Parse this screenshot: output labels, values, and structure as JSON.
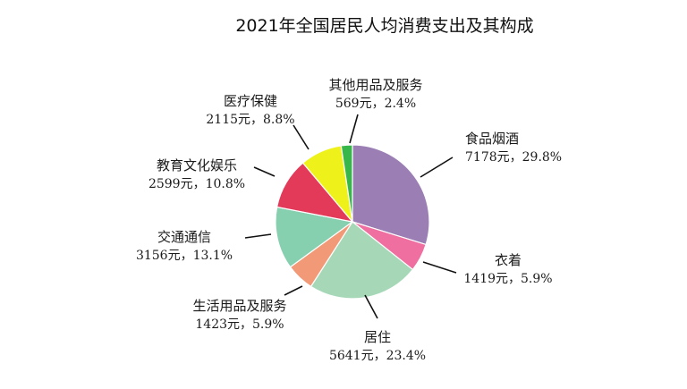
{
  "chart_data": {
    "type": "pie",
    "title": "2021年全国居民人均消费支出及其构成",
    "slices": [
      {
        "name": "食品烟酒",
        "value_label": "7178元，29.8%",
        "amount": 7178,
        "percent": 29.8,
        "color": "#9b7eb3"
      },
      {
        "name": "衣着",
        "value_label": "1419元，5.9%",
        "amount": 1419,
        "percent": 5.9,
        "color": "#ef6fa0"
      },
      {
        "name": "居住",
        "value_label": "5641元，23.4%",
        "amount": 5641,
        "percent": 23.4,
        "color": "#a6d8b8"
      },
      {
        "name": "生活用品及服务",
        "value_label": "1423元，5.9%",
        "amount": 1423,
        "percent": 5.9,
        "color": "#f29a78"
      },
      {
        "name": "交通通信",
        "value_label": "3156元，13.1%",
        "amount": 3156,
        "percent": 13.1,
        "color": "#86cfaf"
      },
      {
        "name": "教育文化娱乐",
        "value_label": "2599元，10.8%",
        "amount": 2599,
        "percent": 10.8,
        "color": "#e33a5a"
      },
      {
        "name": "医疗保健",
        "value_label": "2115元，8.8%",
        "amount": 2115,
        "percent": 8.8,
        "color": "#eef21a"
      },
      {
        "name": "其他用品及服务",
        "value_label": "569元，2.4%",
        "amount": 569,
        "percent": 2.4,
        "color": "#37b64a"
      }
    ]
  }
}
